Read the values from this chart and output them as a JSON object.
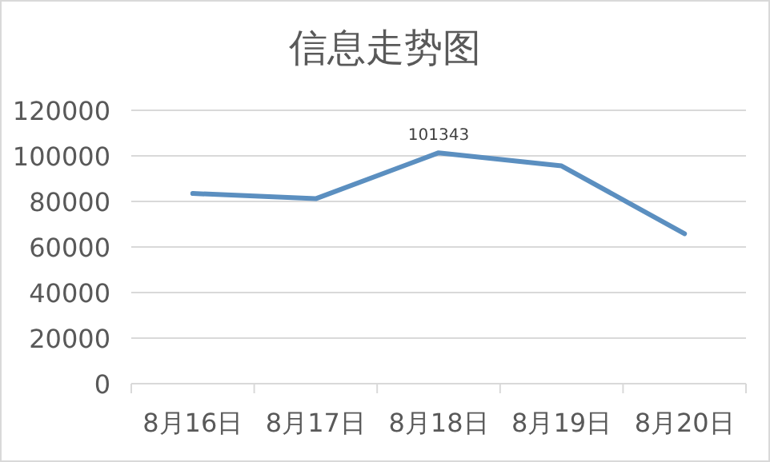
{
  "chart_data": {
    "type": "line",
    "title": "信息走势图",
    "categories": [
      "8月16日",
      "8月17日",
      "8月18日",
      "8月19日",
      "8月20日"
    ],
    "series": [
      {
        "color": "#5b8fc0",
        "values": [
          83500,
          81200,
          101343,
          95600,
          65800
        ],
        "value_labels": [
          null,
          null,
          "101343",
          null,
          null
        ]
      }
    ],
    "ylim": [
      0,
      120000
    ],
    "yticks": [
      0,
      20000,
      40000,
      60000,
      80000,
      100000,
      120000
    ],
    "grid": "y",
    "marker": "none",
    "line_style": "solid"
  }
}
